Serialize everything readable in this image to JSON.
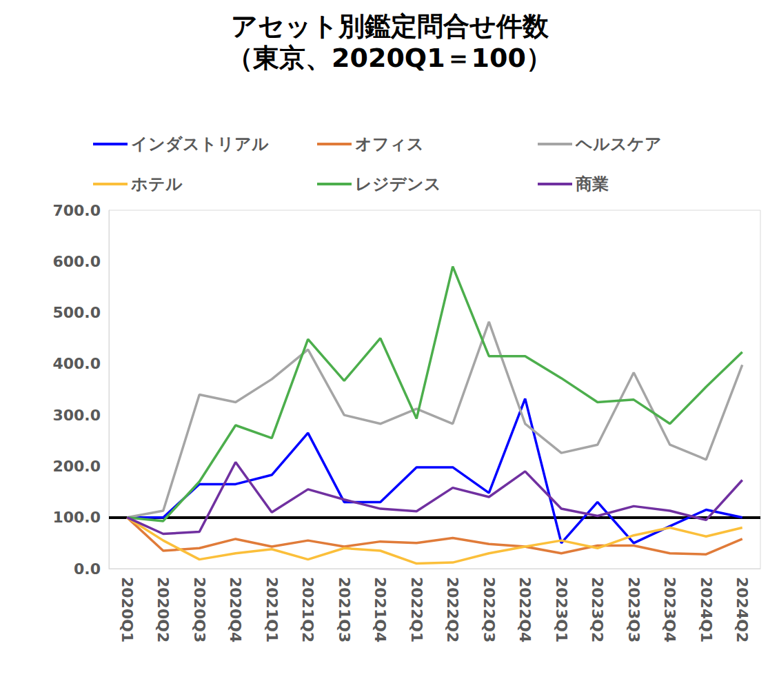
{
  "chart_data": {
    "type": "line",
    "title": "アセット別鑑定問合せ件数",
    "subtitle": "（東京、2020Q1＝100）",
    "categories": [
      "2020Q1",
      "2020Q2",
      "2020Q3",
      "2020Q4",
      "2021Q1",
      "2021Q2",
      "2021Q3",
      "2021Q4",
      "2022Q1",
      "2022Q2",
      "2022Q3",
      "2022Q4",
      "2023Q1",
      "2023Q2",
      "2023Q3",
      "2023Q4",
      "2024Q1",
      "2024Q2"
    ],
    "series": [
      {
        "name": "インダストリアル",
        "color": "#0000ff",
        "values": [
          100,
          100,
          165,
          165,
          183,
          265,
          130,
          130,
          198,
          198,
          148,
          332,
          50,
          130,
          50,
          83,
          115,
          100
        ]
      },
      {
        "name": "オフィス",
        "color": "#e07b39",
        "values": [
          100,
          35,
          40,
          58,
          43,
          55,
          43,
          53,
          50,
          60,
          48,
          43,
          30,
          45,
          45,
          30,
          28,
          58
        ]
      },
      {
        "name": "ヘルスケア",
        "color": "#a5a5a5",
        "values": [
          100,
          113,
          340,
          325,
          370,
          428,
          300,
          283,
          312,
          283,
          482,
          283,
          226,
          242,
          383,
          242,
          213,
          398
        ]
      },
      {
        "name": "ホテル",
        "color": "#fbbf3a",
        "values": [
          100,
          55,
          18,
          30,
          38,
          18,
          40,
          35,
          10,
          12,
          30,
          43,
          55,
          40,
          65,
          80,
          63,
          80
        ]
      },
      {
        "name": "レジデンス",
        "color": "#4cae4c",
        "values": [
          100,
          93,
          170,
          280,
          255,
          448,
          367,
          450,
          293,
          590,
          415,
          415,
          372,
          325,
          330,
          283,
          355,
          423
        ]
      },
      {
        "name": "商業",
        "color": "#7030a0",
        "values": [
          100,
          68,
          72,
          208,
          110,
          155,
          135,
          117,
          112,
          158,
          140,
          190,
          117,
          103,
          122,
          113,
          95,
          173
        ]
      }
    ],
    "reference_line": 100,
    "ylim": [
      0,
      700
    ],
    "yticks": [
      {
        "value": 0,
        "label": "0.0"
      },
      {
        "value": 100,
        "label": "100.0"
      },
      {
        "value": 200,
        "label": "200.0"
      },
      {
        "value": 300,
        "label": "300.0"
      },
      {
        "value": 400,
        "label": "400.0"
      },
      {
        "value": 500,
        "label": "500.0"
      },
      {
        "value": 600,
        "label": "600.0"
      },
      {
        "value": 700,
        "label": "700.0"
      }
    ],
    "grid": false,
    "legend": "top"
  }
}
